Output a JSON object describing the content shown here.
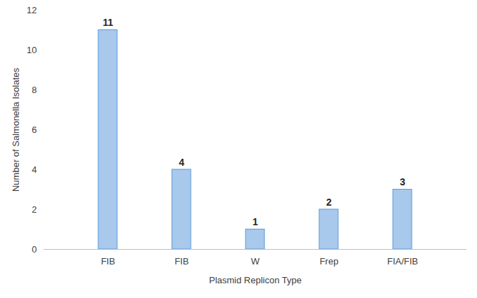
{
  "chart_data": {
    "type": "bar",
    "categories": [
      "FIB",
      "FIB",
      "W",
      "Frep",
      "FIA/FIB"
    ],
    "values": [
      11,
      4,
      1,
      2,
      3
    ],
    "color": "#a8c8ec",
    "ylim": [
      0,
      12
    ],
    "yticks": [
      0,
      2,
      4,
      6,
      8,
      10,
      12
    ],
    "xlabel": "Plasmid Replicon Type",
    "ylabel": "Number of Salmonella Isolates",
    "data_labels": true,
    "grid": false
  }
}
